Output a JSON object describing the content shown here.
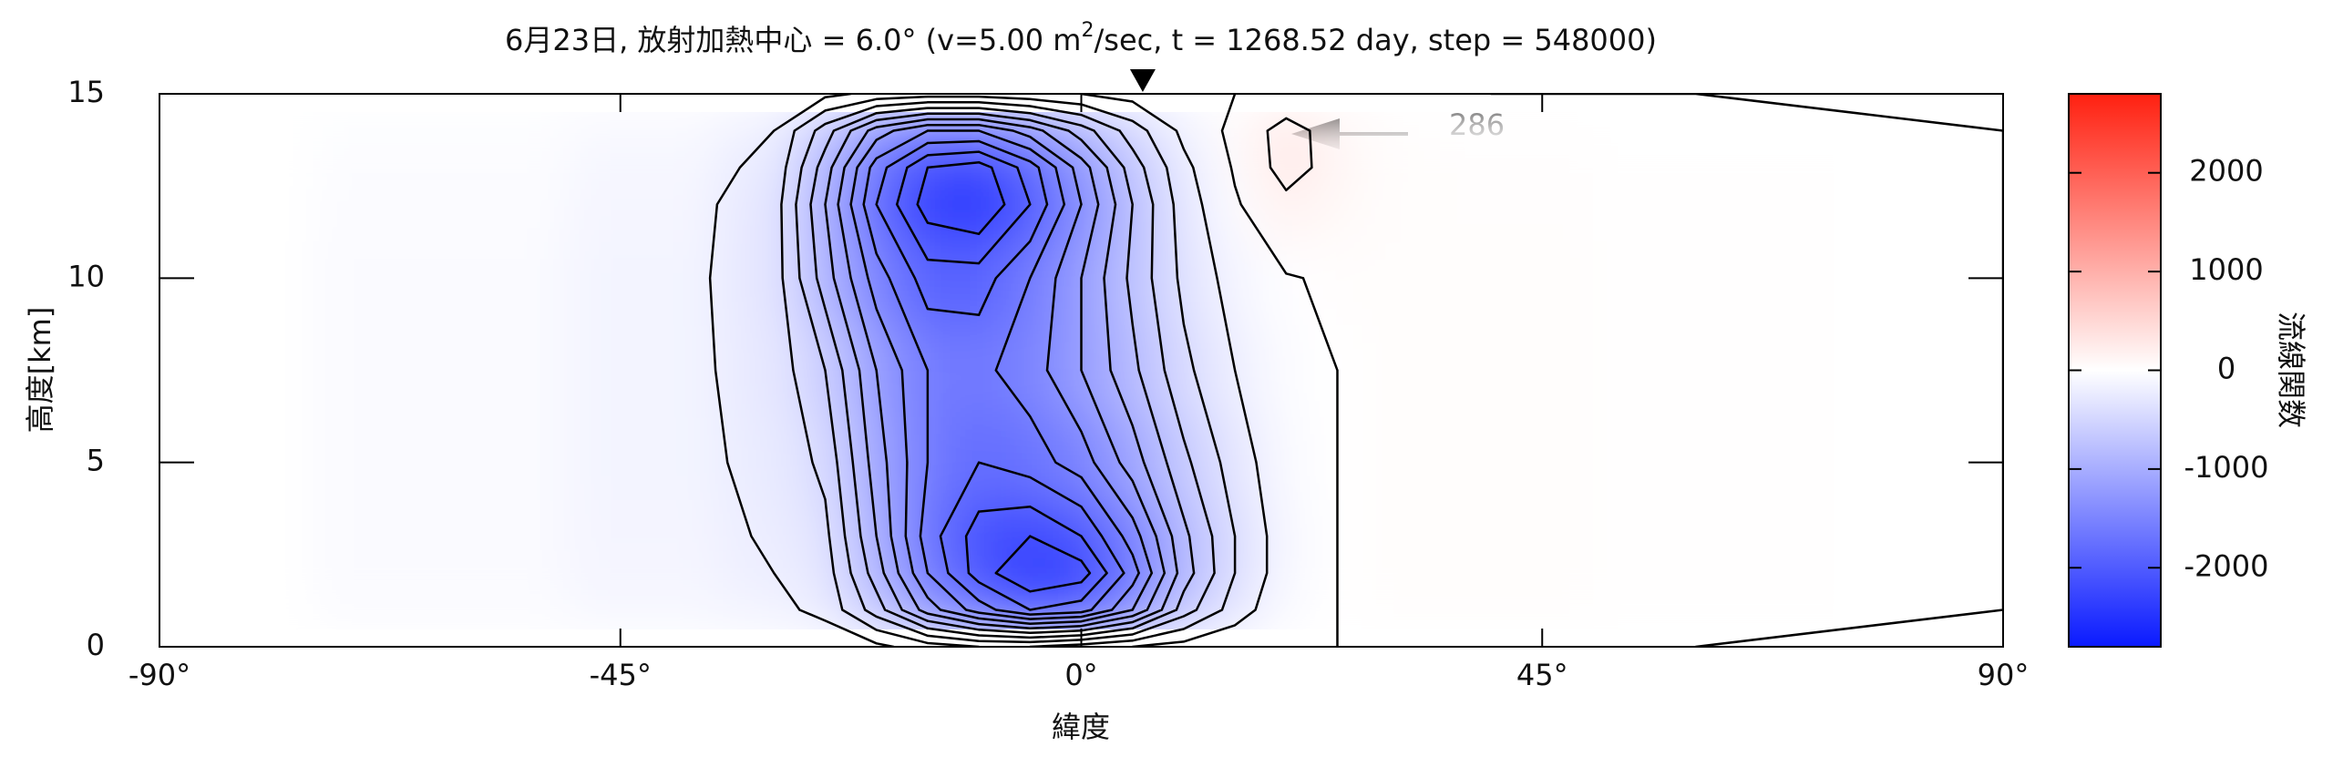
{
  "chart_data": {
    "type": "contour",
    "title": [
      "6月23日, 放射加熱中心 = 6.0°   (v=5.00 m",
      "2",
      "/sec, t = 1268.52 day, step = 548000)"
    ],
    "x_label": "緯度",
    "y_label": "高度[km]",
    "x": [
      -90,
      -60,
      -40,
      -30,
      -25,
      -20,
      -15,
      -10,
      -5,
      0,
      5,
      10,
      15,
      20,
      25,
      30,
      40,
      60,
      90
    ],
    "y": [
      0,
      1,
      2,
      3,
      5,
      7.5,
      10,
      12,
      13,
      14,
      15
    ],
    "z": [
      [
        0,
        -20,
        -40,
        -60,
        -80,
        -150,
        -300,
        -400,
        -400,
        -300,
        -200,
        -120,
        -60,
        -10,
        0,
        10,
        10,
        0,
        0
      ],
      [
        0,
        -50,
        -100,
        -150,
        -250,
        -700,
        -1300,
        -1700,
        -2000,
        -1900,
        -1400,
        -700,
        -300,
        -50,
        0,
        20,
        20,
        10,
        0
      ],
      [
        0,
        -60,
        -120,
        -200,
        -300,
        -900,
        -1600,
        -2100,
        -2400,
        -2300,
        -1700,
        -900,
        -400,
        -80,
        0,
        30,
        30,
        10,
        0
      ],
      [
        0,
        -60,
        -130,
        -220,
        -350,
        -1000,
        -1700,
        -2100,
        -2200,
        -2000,
        -1500,
        -850,
        -400,
        -80,
        0,
        30,
        30,
        10,
        0
      ],
      [
        0,
        -60,
        -140,
        -250,
        -450,
        -1100,
        -1600,
        -1800,
        -1700,
        -1500,
        -1100,
        -650,
        -300,
        -60,
        0,
        30,
        30,
        10,
        0
      ],
      [
        0,
        -60,
        -140,
        -280,
        -600,
        -1200,
        -1600,
        -1650,
        -1500,
        -1200,
        -850,
        -450,
        -200,
        -40,
        0,
        30,
        30,
        10,
        0
      ],
      [
        0,
        -60,
        -140,
        -300,
        -900,
        -1500,
        -1900,
        -1900,
        -1600,
        -1200,
        -750,
        -350,
        -120,
        -10,
        20,
        30,
        30,
        10,
        0
      ],
      [
        0,
        -50,
        -120,
        -300,
        -1000,
        -1800,
        -2300,
        -2400,
        -2000,
        -1400,
        -800,
        -300,
        -20,
        150,
        80,
        30,
        20,
        10,
        0
      ],
      [
        0,
        -40,
        -100,
        -250,
        -900,
        -1700,
        -2200,
        -2300,
        -1900,
        -1300,
        -700,
        -250,
        20,
        280,
        120,
        30,
        20,
        10,
        0
      ],
      [
        0,
        -30,
        -80,
        -200,
        -700,
        -1300,
        -1600,
        -1600,
        -1300,
        -900,
        -500,
        -150,
        50,
        286,
        100,
        20,
        10,
        5,
        0
      ],
      [
        0,
        -10,
        -30,
        -60,
        -150,
        -250,
        -300,
        -300,
        -250,
        -200,
        -120,
        -50,
        0,
        30,
        10,
        5,
        0,
        0,
        0
      ]
    ],
    "contour_levels": [
      -2200,
      -2000,
      -1800,
      -1600,
      -1400,
      -1200,
      -1000,
      -800,
      -600,
      -400,
      -200,
      0,
      200
    ],
    "xlim": [
      -90,
      90
    ],
    "xticks": [
      {
        "value": -90,
        "label": "-90°"
      },
      {
        "value": -45,
        "label": "-45°"
      },
      {
        "value": 0,
        "label": "0°"
      },
      {
        "value": 45,
        "label": "45°"
      },
      {
        "value": 90,
        "label": "90°"
      }
    ],
    "ylim": [
      0,
      15
    ],
    "yticks": [
      0,
      5,
      10,
      15
    ],
    "marker_x": 6.0,
    "annotation": "286",
    "colorbar": {
      "label": "流線関数",
      "lim": [
        -2800,
        2800
      ],
      "ticks": [
        -2000,
        -1000,
        0,
        1000,
        2000
      ],
      "colors": [
        "#0a1aff",
        "#ffffff",
        "#ff2010"
      ]
    },
    "grid": false
  }
}
